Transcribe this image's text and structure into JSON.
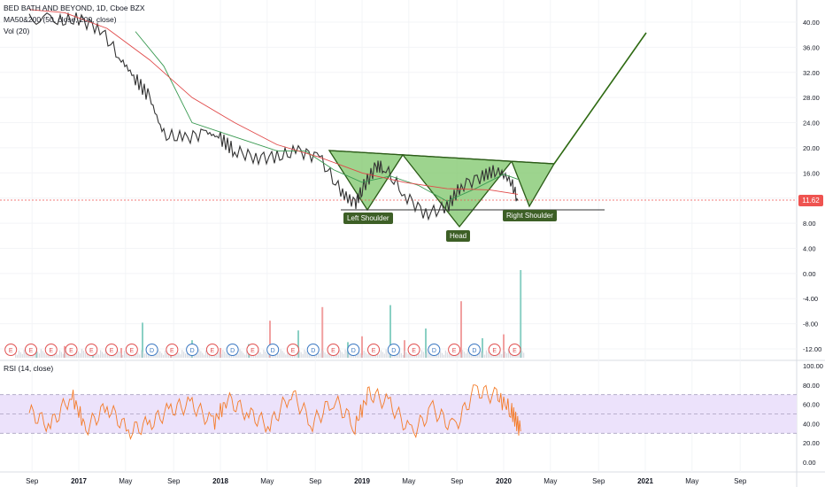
{
  "legend": {
    "symbol": "BED BATH AND BEYOND, 1D, Cboe BZX",
    "ma": "MA50&200 (50, close, 200, close)",
    "vol": "Vol (20)",
    "rsi": "RSI (14, close)"
  },
  "last_price_label": "11.62",
  "colors": {
    "price_candles": "#333333",
    "ma50": "#3a9a52",
    "ma200": "#e04848",
    "pattern_fill": "#7cc668",
    "pattern_stroke": "#2c5c18",
    "projection": "#2e6a12",
    "rsi_line": "#f47b28",
    "rsi_band": "#ece2fb",
    "volume_up": "#8ad0c4",
    "volume_down": "#f1a0a0",
    "earnings_marker": "#e05050",
    "dividend_marker": "#3b78c2"
  },
  "annotations": {
    "left_shoulder": "Left Shoulder",
    "head": "Head",
    "right_shoulder": "Right Shoulder"
  },
  "event_markers": [
    "E",
    "E",
    "E",
    "E",
    "E",
    "E",
    "E",
    "D",
    "E",
    "D",
    "E",
    "D",
    "E",
    "D",
    "E",
    "D",
    "E",
    "D",
    "E",
    "D",
    "E",
    "D",
    "E",
    "D",
    "E",
    "E"
  ],
  "chart_data": [
    {
      "type": "line",
      "name": "price",
      "x_ticks": [
        "Sep",
        "2017",
        "May",
        "Sep",
        "2018",
        "May",
        "Sep",
        "2019",
        "May",
        "Sep",
        "2020",
        "May",
        "Sep",
        "2021",
        "May",
        "Sep"
      ],
      "y_ticks": [
        "40.00",
        "36.00",
        "32.00",
        "28.00",
        "24.00",
        "20.00",
        "16.00",
        "12.00",
        "8.00",
        "4.00",
        "0.00",
        "-4.00",
        "-8.00",
        "-12.00"
      ],
      "ylim": [
        -12,
        40
      ],
      "series": [
        {
          "role": "close",
          "x": [
            2016.65,
            2016.85,
            2017.0,
            2017.15,
            2017.3,
            2017.4,
            2017.5,
            2017.6,
            2017.75,
            2017.9,
            2018.0,
            2018.1,
            2018.25,
            2018.4,
            2018.55,
            2018.7,
            2018.85,
            2018.95,
            2019.0,
            2019.1,
            2019.15,
            2019.3,
            2019.45,
            2019.6,
            2019.7,
            2019.85,
            2019.95,
            2020.05,
            2020.1
          ],
          "y": [
            41,
            40,
            40.5,
            39,
            34,
            31,
            28,
            22,
            21.5,
            22.5,
            21.5,
            19.5,
            18.5,
            18.5,
            19.5,
            18.5,
            13,
            11,
            13.5,
            17,
            17,
            12.5,
            9.5,
            10.5,
            14,
            15.5,
            16.5,
            14.8,
            11.6
          ]
        },
        {
          "role": "ma50",
          "x": [
            2017.4,
            2017.6,
            2017.8,
            2018.0,
            2018.2,
            2018.4,
            2018.6,
            2018.8,
            2019.0,
            2019.2,
            2019.4,
            2019.6,
            2019.8,
            2020.0,
            2020.1
          ],
          "y": [
            38.5,
            33,
            24,
            22.5,
            21,
            19.5,
            19.5,
            16.5,
            14.5,
            15.5,
            14,
            11.5,
            13.5,
            15.8,
            15
          ]
        },
        {
          "role": "ma200",
          "x": [
            2016.65,
            2016.9,
            2017.2,
            2017.5,
            2017.8,
            2018.1,
            2018.4,
            2018.7,
            2019.0,
            2019.3,
            2019.6,
            2019.9,
            2020.1
          ],
          "y": [
            42,
            41.5,
            39,
            34,
            28,
            24,
            20.5,
            18.5,
            16,
            14.5,
            13.5,
            13.3,
            12.6
          ]
        }
      ]
    },
    {
      "type": "bar",
      "name": "volume",
      "x": [
        2016.7,
        2016.9,
        2017.1,
        2017.3,
        2017.45,
        2017.65,
        2017.8,
        2018.0,
        2018.2,
        2018.35,
        2018.55,
        2018.72,
        2018.9,
        2019.0,
        2019.2,
        2019.3,
        2019.45,
        2019.7,
        2019.85,
        2020.0,
        2020.12
      ],
      "values": [
        0.5,
        0.6,
        0.4,
        0.5,
        1.8,
        0.6,
        0.9,
        0.5,
        0.7,
        1.9,
        1.4,
        2.6,
        0.8,
        1.1,
        2.7,
        0.9,
        1.5,
        2.9,
        1.0,
        1.2,
        4.5
      ]
    },
    {
      "type": "line",
      "name": "rsi",
      "y_ticks": [
        "100.00",
        "80.00",
        "60.00",
        "40.00",
        "20.00",
        "0.00"
      ],
      "ylim": [
        0,
        100
      ],
      "bands": [
        30,
        70
      ],
      "x": [
        2016.65,
        2016.8,
        2016.95,
        2017.05,
        2017.2,
        2017.35,
        2017.5,
        2017.65,
        2017.8,
        2017.95,
        2018.05,
        2018.2,
        2018.35,
        2018.5,
        2018.65,
        2018.8,
        2018.95,
        2019.05,
        2019.2,
        2019.35,
        2019.5,
        2019.65,
        2019.8,
        2019.95,
        2020.05,
        2020.12
      ],
      "values": [
        52,
        38,
        70,
        35,
        58,
        32,
        40,
        55,
        60,
        40,
        65,
        50,
        38,
        72,
        40,
        65,
        38,
        72,
        60,
        30,
        55,
        35,
        75,
        68,
        55,
        32
      ]
    }
  ]
}
